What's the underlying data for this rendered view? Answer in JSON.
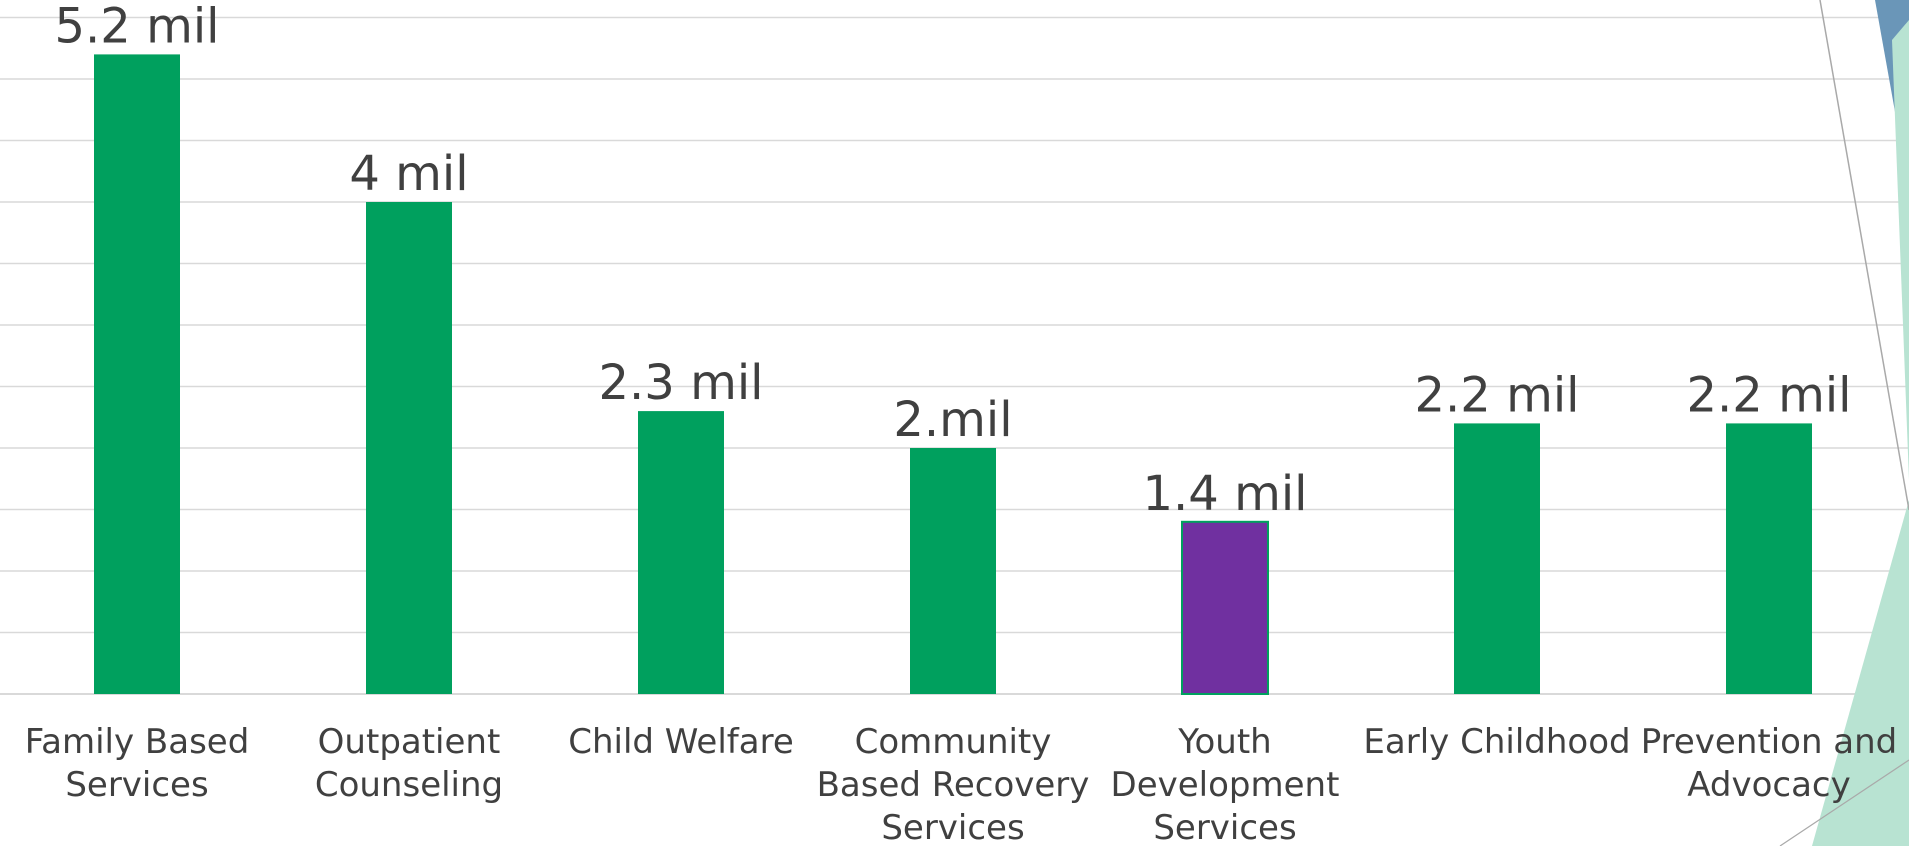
{
  "chart_data": {
    "type": "bar",
    "categories": [
      [
        "Family Based",
        "Services"
      ],
      [
        "Outpatient",
        "Counseling"
      ],
      [
        "Child Welfare"
      ],
      [
        "Community",
        "Based Recovery",
        "Services"
      ],
      [
        "Youth",
        "Development",
        "Services"
      ],
      [
        "Early Childhood"
      ],
      [
        "Prevention and",
        "Advocacy"
      ]
    ],
    "values": [
      5.2,
      4.0,
      2.3,
      2.0,
      1.4,
      2.2,
      2.2
    ],
    "data_labels": [
      "5.2 mil",
      "4 mil",
      "2.3 mil",
      "2.mil",
      "1.4 mil",
      "2.2 mil",
      "2.2 mil"
    ],
    "bar_colors": [
      "#00A05E",
      "#00A05E",
      "#00A05E",
      "#00A05E",
      "#7030A0",
      "#00A05E",
      "#00A05E"
    ],
    "grid": true,
    "gridline_color": "#d9d9d9",
    "label_color": "#404040",
    "decor_colors": [
      "#b8e3d2",
      "#6a96b8",
      "#a9a9a9"
    ]
  }
}
